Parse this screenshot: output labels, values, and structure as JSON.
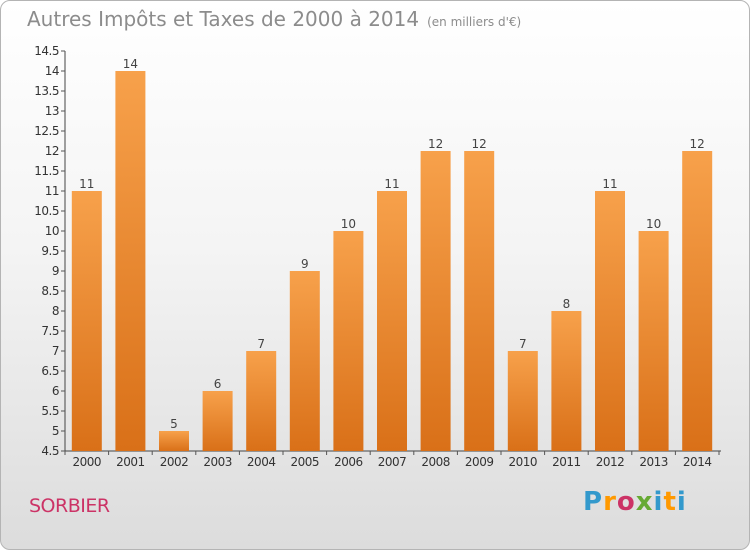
{
  "title": "Autres Impôts et Taxes de 2000 à 2014",
  "subtitle": "(en milliers d'€)",
  "location": "SORBIER",
  "logo": {
    "text": "Proxiti",
    "letter_colors": [
      "#3399cc",
      "#ff9900",
      "#cc3366",
      "#66aa33",
      "#3399cc",
      "#ff9900",
      "#3399cc"
    ]
  },
  "colors": {
    "bar_top": "#f7a14b",
    "bar_bottom": "#d97018",
    "axis": "#444444",
    "grid_tick": "#555555",
    "location_text": "#cc3366"
  },
  "chart_data": {
    "type": "bar",
    "categories": [
      "2000",
      "2001",
      "2002",
      "2003",
      "2004",
      "2005",
      "2006",
      "2007",
      "2008",
      "2009",
      "2010",
      "2011",
      "2012",
      "2013",
      "2014"
    ],
    "values": [
      11,
      14,
      5,
      6,
      7,
      9,
      10,
      11,
      12,
      12,
      7,
      8,
      11,
      10,
      12
    ],
    "data_labels": [
      "11",
      "14",
      "5",
      "6",
      "7",
      "9",
      "10",
      "11",
      "12",
      "12",
      "7",
      "8",
      "11",
      "10",
      "12"
    ],
    "ylim": [
      4.5,
      14.5
    ],
    "yticks": [
      4.5,
      5,
      5.5,
      6,
      6.5,
      7,
      7.5,
      8,
      8.5,
      9,
      9.5,
      10,
      10.5,
      11,
      11.5,
      12,
      12.5,
      13,
      13.5,
      14,
      14.5
    ],
    "ytick_labels": [
      "4.5",
      "5",
      "5.5",
      "6",
      "6.5",
      "7",
      "7.5",
      "8",
      "8.5",
      "9",
      "9.5",
      "10",
      "10.5",
      "11",
      "11.5",
      "12",
      "12.5",
      "13",
      "13.5",
      "14",
      "14.5"
    ],
    "grid": false,
    "xlabel": "",
    "ylabel": ""
  }
}
